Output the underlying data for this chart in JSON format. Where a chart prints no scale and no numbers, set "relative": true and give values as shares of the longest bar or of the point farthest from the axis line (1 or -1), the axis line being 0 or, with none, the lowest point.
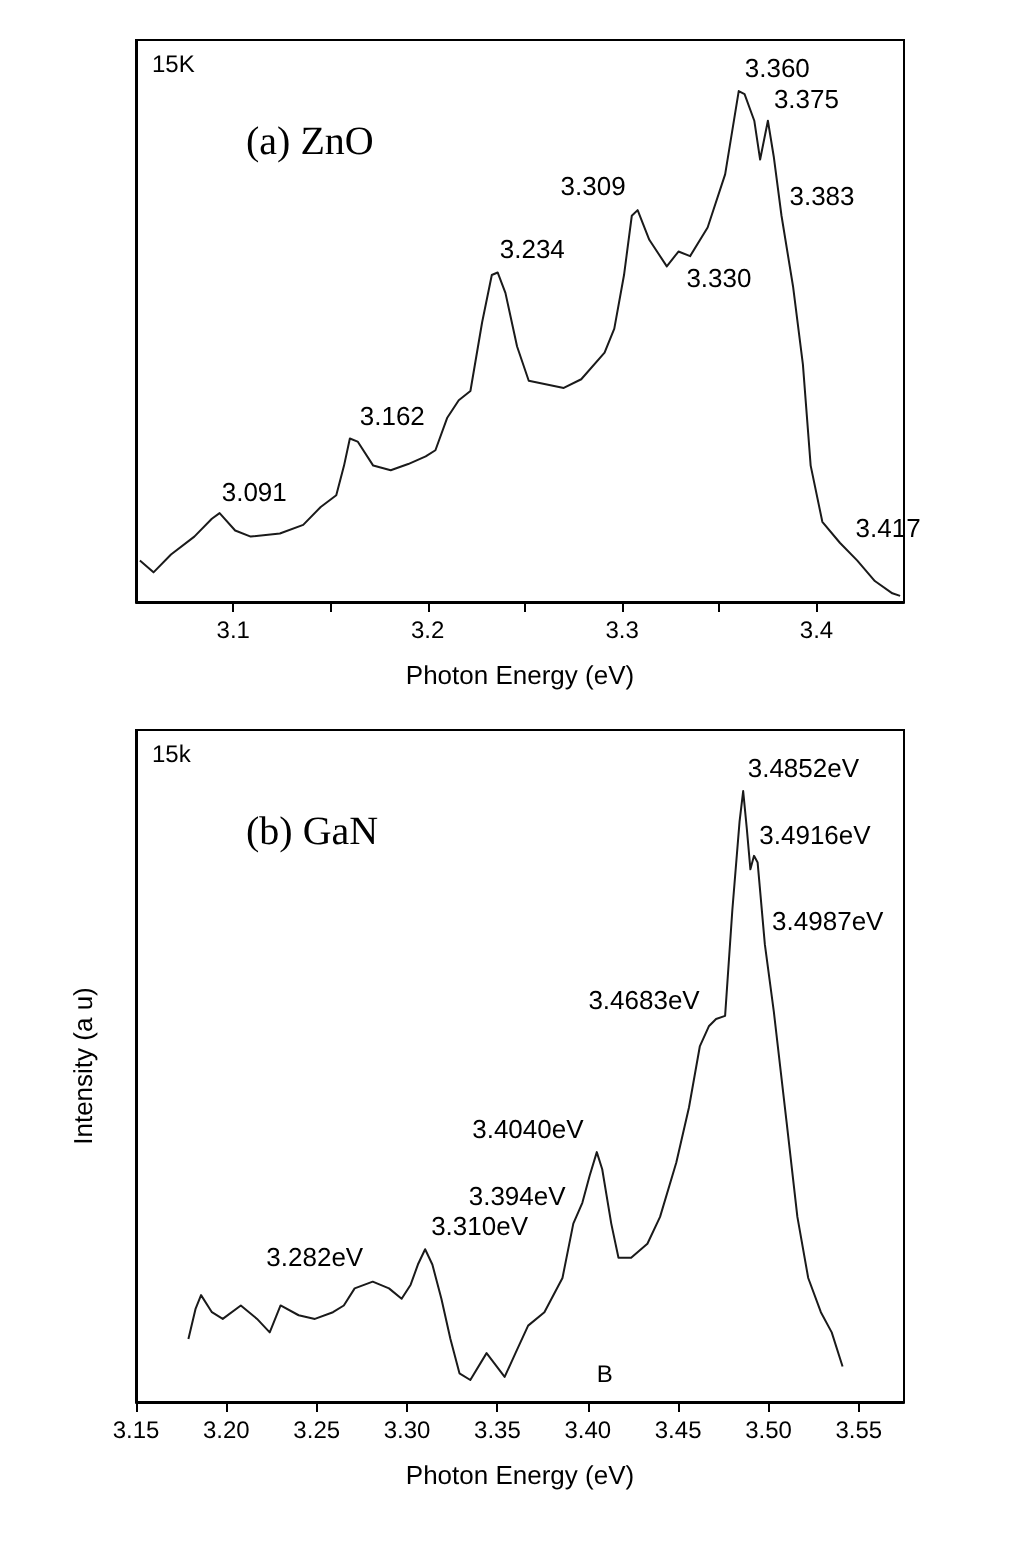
{
  "chart_data": [
    {
      "type": "line",
      "title": "(a) ZnO",
      "xlabel": "Photon Energy (eV)",
      "relative": true,
      "marker": "none",
      "xlim": [
        3.05,
        3.445
      ],
      "xticks": [
        3.1,
        {
          "value": 3.15,
          "label": null
        },
        3.2,
        {
          "value": 3.25,
          "label": null
        },
        3.3,
        {
          "value": 3.35,
          "label": null
        },
        3.4
      ],
      "x": [
        3.052,
        3.059,
        3.068,
        3.08,
        3.089,
        3.093,
        3.101,
        3.109,
        3.124,
        3.136,
        3.145,
        3.153,
        3.157,
        3.16,
        3.164,
        3.172,
        3.181,
        3.19,
        3.199,
        3.204,
        3.21,
        3.216,
        3.222,
        3.228,
        3.233,
        3.236,
        3.24,
        3.246,
        3.252,
        3.27,
        3.279,
        3.291,
        3.296,
        3.301,
        3.305,
        3.308,
        3.314,
        3.323,
        3.329,
        3.335,
        3.344,
        3.353,
        3.36,
        3.363,
        3.368,
        3.371,
        3.375,
        3.378,
        3.382,
        3.388,
        3.393,
        3.397,
        3.403,
        3.412,
        3.421,
        3.43,
        3.439,
        3.443
      ],
      "series": [
        {
          "color": "#1a1a1a",
          "values": [
            0.081,
            0.058,
            0.093,
            0.128,
            0.163,
            0.174,
            0.14,
            0.128,
            0.134,
            0.151,
            0.186,
            0.209,
            0.267,
            0.32,
            0.314,
            0.267,
            0.258,
            0.27,
            0.285,
            0.297,
            0.36,
            0.395,
            0.413,
            0.547,
            0.64,
            0.645,
            0.605,
            0.5,
            0.433,
            0.419,
            0.436,
            0.488,
            0.535,
            0.64,
            0.756,
            0.767,
            0.709,
            0.657,
            0.686,
            0.677,
            0.733,
            0.837,
            1.0,
            0.994,
            0.942,
            0.866,
            0.942,
            0.872,
            0.756,
            0.616,
            0.465,
            0.267,
            0.157,
            0.116,
            0.081,
            0.041,
            0.017,
            0.012
          ]
        }
      ],
      "annotations": [
        "15K",
        {
          "text": "3.091",
          "x": 3.091,
          "y": 0.17
        },
        {
          "text": "3.162",
          "x": 3.162,
          "y": 0.32
        },
        {
          "text": "3.234",
          "x": 3.234,
          "y": 0.645
        },
        {
          "text": "3.309",
          "x": 3.309,
          "y": 0.77
        },
        {
          "text": "3.330",
          "x": 3.33,
          "y": 0.68
        },
        {
          "text": "3.360",
          "x": 3.36,
          "y": 1.0
        },
        {
          "text": "3.375",
          "x": 3.375,
          "y": 0.94
        },
        {
          "text": "3.383",
          "x": 3.383,
          "y": 0.75
        },
        {
          "text": "3.417",
          "x": 3.417,
          "y": 0.1
        }
      ]
    },
    {
      "type": "line",
      "title": "(b) GaN",
      "xlabel": "Photon Energy (eV)",
      "ylabel": "Intensity (a u)",
      "relative": true,
      "marker": "none",
      "xlim": [
        3.15,
        3.575
      ],
      "xticks": [
        3.15,
        {
          "value": 3.2,
          "label": "3.20"
        },
        3.25,
        {
          "value": 3.3,
          "label": "3.30"
        },
        3.35,
        {
          "value": 3.4,
          "label": "3.40"
        },
        3.45,
        {
          "value": 3.5,
          "label": "3.50"
        },
        3.55
      ],
      "x": [
        3.179,
        3.183,
        3.186,
        3.192,
        3.198,
        3.208,
        3.217,
        3.224,
        3.23,
        3.24,
        3.249,
        3.259,
        3.265,
        3.271,
        3.281,
        3.29,
        3.297,
        3.302,
        3.306,
        3.31,
        3.314,
        3.319,
        3.324,
        3.329,
        3.335,
        3.344,
        3.354,
        3.36,
        3.367,
        3.376,
        3.386,
        3.392,
        3.397,
        3.401,
        3.405,
        3.408,
        3.413,
        3.417,
        3.424,
        3.433,
        3.44,
        3.449,
        3.456,
        3.462,
        3.467,
        3.471,
        3.476,
        3.48,
        3.484,
        3.486,
        3.488,
        3.49,
        3.492,
        3.494,
        3.498,
        3.503,
        3.51,
        3.516,
        3.522,
        3.529,
        3.535,
        3.541
      ],
      "series": [
        {
          "color": "#1a1a1a",
          "values": [
            0.103,
            0.153,
            0.175,
            0.147,
            0.136,
            0.158,
            0.136,
            0.114,
            0.158,
            0.142,
            0.136,
            0.147,
            0.158,
            0.186,
            0.197,
            0.186,
            0.169,
            0.192,
            0.225,
            0.25,
            0.225,
            0.169,
            0.103,
            0.047,
            0.036,
            0.08,
            0.041,
            0.08,
            0.125,
            0.147,
            0.203,
            0.292,
            0.326,
            0.37,
            0.409,
            0.381,
            0.292,
            0.236,
            0.236,
            0.259,
            0.303,
            0.392,
            0.482,
            0.582,
            0.615,
            0.627,
            0.632,
            0.805,
            0.95,
            1.0,
            0.939,
            0.872,
            0.894,
            0.883,
            0.749,
            0.638,
            0.459,
            0.303,
            0.203,
            0.147,
            0.114,
            0.058
          ]
        }
      ],
      "annotations": [
        "15k",
        {
          "text": "3.282eV",
          "x": 3.282,
          "y": 0.2
        },
        {
          "text": "3.310eV",
          "x": 3.31,
          "y": 0.25
        },
        {
          "text": "3.394eV",
          "x": 3.394,
          "y": 0.3
        },
        {
          "text": "3.4040eV",
          "x": 3.404,
          "y": 0.41
        },
        {
          "text": "3.4683eV",
          "x": 3.4683,
          "y": 0.62
        },
        {
          "text": "3.4852eV",
          "x": 3.4852,
          "y": 1.0
        },
        {
          "text": "3.4916eV",
          "x": 3.4916,
          "y": 0.89
        },
        {
          "text": "3.4987eV",
          "x": 3.4987,
          "y": 0.75
        },
        "B"
      ]
    }
  ]
}
